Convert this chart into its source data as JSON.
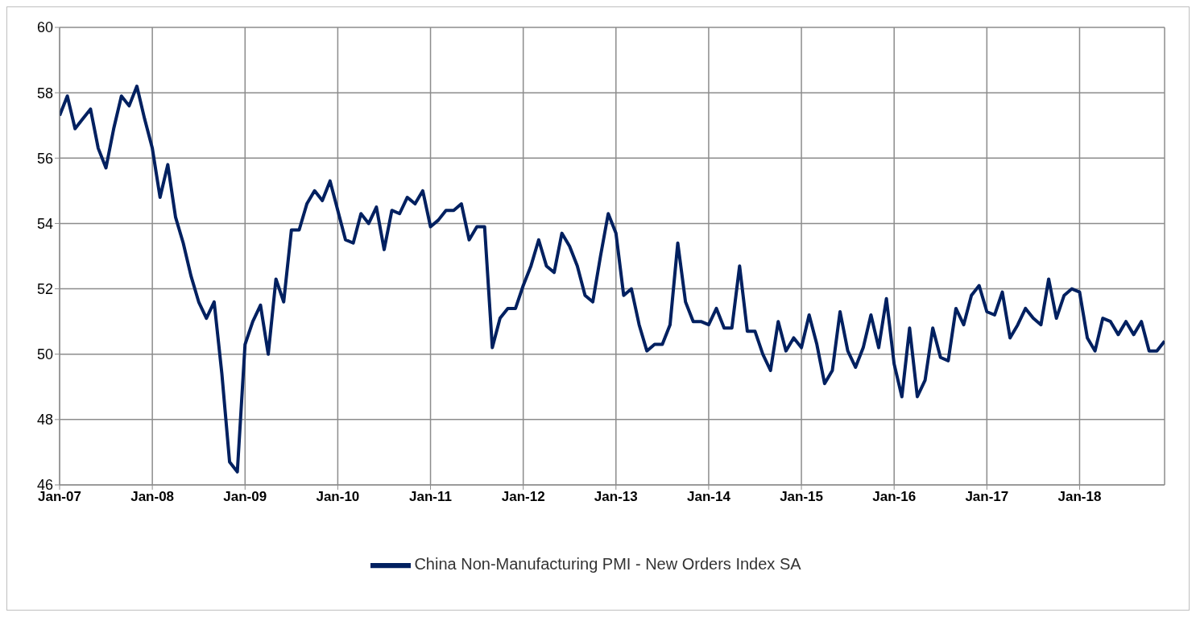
{
  "chart_data": {
    "type": "line",
    "x": [
      "2007-01",
      "2007-02",
      "2007-03",
      "2007-04",
      "2007-05",
      "2007-06",
      "2007-07",
      "2007-08",
      "2007-09",
      "2007-10",
      "2007-11",
      "2007-12",
      "2008-01",
      "2008-02",
      "2008-03",
      "2008-04",
      "2008-05",
      "2008-06",
      "2008-07",
      "2008-08",
      "2008-09",
      "2008-10",
      "2008-11",
      "2008-12",
      "2009-01",
      "2009-02",
      "2009-03",
      "2009-04",
      "2009-05",
      "2009-06",
      "2009-07",
      "2009-08",
      "2009-09",
      "2009-10",
      "2009-11",
      "2009-12",
      "2010-01",
      "2010-02",
      "2010-03",
      "2010-04",
      "2010-05",
      "2010-06",
      "2010-07",
      "2010-08",
      "2010-09",
      "2010-10",
      "2010-11",
      "2010-12",
      "2011-01",
      "2011-02",
      "2011-03",
      "2011-04",
      "2011-05",
      "2011-06",
      "2011-07",
      "2011-08",
      "2011-09",
      "2011-10",
      "2011-11",
      "2011-12",
      "2012-01",
      "2012-02",
      "2012-03",
      "2012-04",
      "2012-05",
      "2012-06",
      "2012-07",
      "2012-08",
      "2012-09",
      "2012-10",
      "2012-11",
      "2012-12",
      "2013-01",
      "2013-02",
      "2013-03",
      "2013-04",
      "2013-05",
      "2013-06",
      "2013-07",
      "2013-08",
      "2013-09",
      "2013-10",
      "2013-11",
      "2013-12",
      "2014-01",
      "2014-02",
      "2014-03",
      "2014-04",
      "2014-05",
      "2014-06",
      "2014-07",
      "2014-08",
      "2014-09",
      "2014-10",
      "2014-11",
      "2014-12",
      "2015-01",
      "2015-02",
      "2015-03",
      "2015-04",
      "2015-05",
      "2015-06",
      "2015-07",
      "2015-08",
      "2015-09",
      "2015-10",
      "2015-11",
      "2015-12",
      "2016-01",
      "2016-02",
      "2016-03",
      "2016-04",
      "2016-05",
      "2016-06",
      "2016-07",
      "2016-08",
      "2016-09",
      "2016-10",
      "2016-11",
      "2016-12",
      "2017-01",
      "2017-02",
      "2017-03",
      "2017-04",
      "2017-05",
      "2017-06",
      "2017-07",
      "2017-08",
      "2017-09",
      "2017-10",
      "2017-11",
      "2017-12",
      "2018-01",
      "2018-02",
      "2018-03",
      "2018-04",
      "2018-05",
      "2018-06",
      "2018-07",
      "2018-08",
      "2018-09",
      "2018-10",
      "2018-11",
      "2018-12"
    ],
    "series": [
      {
        "name": "China Non-Manufacturing PMI - New Orders Index SA",
        "color": "#002060",
        "values": [
          57.3,
          57.9,
          56.9,
          57.2,
          57.5,
          56.3,
          55.7,
          56.9,
          57.9,
          57.6,
          58.2,
          57.2,
          56.3,
          54.8,
          55.8,
          54.2,
          53.4,
          52.4,
          51.6,
          51.1,
          51.6,
          49.4,
          46.7,
          46.4,
          50.3,
          51.0,
          51.5,
          50.0,
          52.3,
          51.6,
          53.8,
          53.8,
          54.6,
          55.0,
          54.7,
          55.3,
          54.4,
          53.5,
          53.4,
          54.3,
          54.0,
          54.5,
          53.2,
          54.4,
          54.3,
          54.8,
          54.6,
          55.0,
          53.9,
          54.1,
          54.4,
          54.4,
          54.6,
          53.5,
          53.9,
          53.9,
          50.2,
          51.1,
          51.4,
          51.4,
          52.1,
          52.7,
          53.5,
          52.7,
          52.5,
          53.7,
          53.3,
          52.7,
          51.8,
          51.6,
          53.0,
          54.3,
          53.7,
          51.8,
          52.0,
          50.9,
          50.1,
          50.3,
          50.3,
          50.9,
          53.4,
          51.6,
          51.0,
          51.0,
          50.9,
          51.4,
          50.8,
          50.8,
          52.7,
          50.7,
          50.7,
          50.0,
          49.5,
          51.0,
          50.1,
          50.5,
          50.2,
          51.2,
          50.3,
          49.1,
          49.5,
          51.3,
          50.1,
          49.6,
          50.2,
          51.2,
          50.2,
          51.7,
          49.7,
          48.7,
          50.8,
          48.7,
          49.2,
          50.8,
          49.9,
          49.8,
          51.4,
          50.9,
          51.8,
          52.1,
          51.3,
          51.2,
          51.9,
          50.5,
          50.9,
          51.4,
          51.1,
          50.9,
          52.3,
          51.1,
          51.8,
          52.0,
          51.9,
          50.5,
          50.1,
          51.1,
          51.0,
          50.6,
          51.0,
          50.6,
          51.0,
          50.1,
          50.1,
          50.4
        ]
      }
    ],
    "xlim": [
      "2007-01",
      "2018-12"
    ],
    "xticks": [
      {
        "value": "2007-01",
        "label": "Jan-07"
      },
      {
        "value": "2008-01",
        "label": "Jan-08"
      },
      {
        "value": "2009-01",
        "label": "Jan-09"
      },
      {
        "value": "2010-01",
        "label": "Jan-10"
      },
      {
        "value": "2011-01",
        "label": "Jan-11"
      },
      {
        "value": "2012-01",
        "label": "Jan-12"
      },
      {
        "value": "2013-01",
        "label": "Jan-13"
      },
      {
        "value": "2014-01",
        "label": "Jan-14"
      },
      {
        "value": "2015-01",
        "label": "Jan-15"
      },
      {
        "value": "2016-01",
        "label": "Jan-16"
      },
      {
        "value": "2017-01",
        "label": "Jan-17"
      },
      {
        "value": "2018-01",
        "label": "Jan-18"
      }
    ],
    "ylim": [
      46,
      60
    ],
    "yticks": [
      46,
      48,
      50,
      52,
      54,
      56,
      58,
      60
    ],
    "grid": true,
    "legend": "bottom",
    "marker": "none",
    "line_style": "solid"
  }
}
